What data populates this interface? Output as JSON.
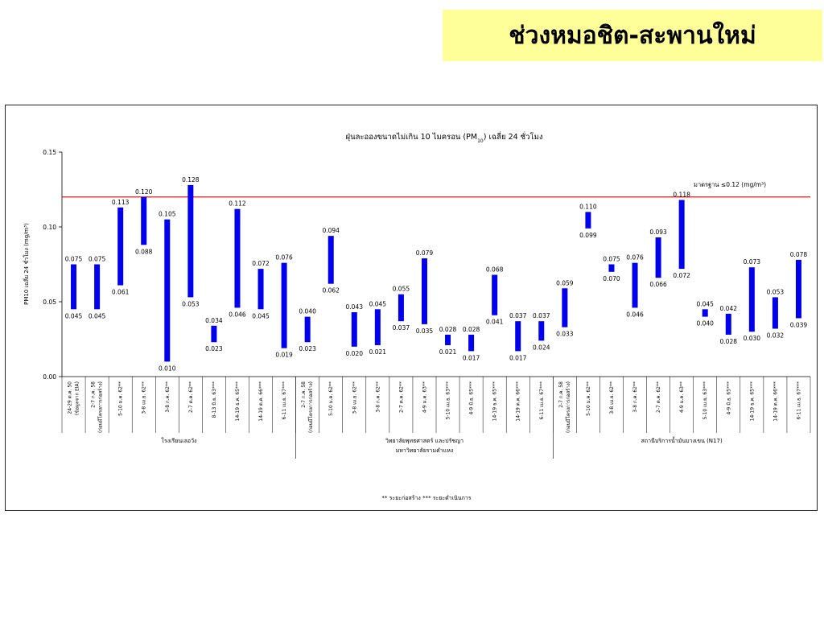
{
  "slide": {
    "title": "ช่วงหมอชิต-สะพานใหม่"
  },
  "chart_data": {
    "type": "bar",
    "subtype": "floating-range",
    "title": "ฝุ่นละอองขนาดไม่เกิน 10 ไมครอน (PM",
    "title_sub": "10",
    "title_tail": ") เฉลี่ย 24 ชั่วโมง",
    "ylabel": "PM10 เฉลี่ย 24 ชั่วโมง (mg/m³)",
    "ylim": [
      0,
      0.15
    ],
    "yticks": [
      "0.00",
      "0.05",
      "0.10",
      "0.15"
    ],
    "standard": {
      "value": 0.12,
      "label": "มาตรฐาน ≤0.12 (mg/m³)",
      "color": "#e00000"
    },
    "bar_color": "#0000ee",
    "categories": [
      "24-29 ต.ค. 50",
      "2-7 ก.ค. 58",
      "5-10 ม.ค. 62**",
      "3-8 เม.ย. 62**",
      "3-8 ก.ค. 62**",
      "2-7 ต.ค. 62**",
      "8-13 มิ.ย. 63***",
      "14-19 ธ.ค. 65***",
      "14-19 ต.ค. 66***",
      "6-11 เม.ย. 67***",
      "2-7 ก.ค. 58",
      "5-10 ม.ค. 62**",
      "3-8 เม.ย. 62**",
      "3-8 ก.ค. 62**",
      "2-7 ต.ค. 62**",
      "4-9 ม.ค. 63**",
      "5-10 เม.ย. 63***",
      "4-9 มิ.ย. 65***",
      "14-19 ธ.ค. 65***",
      "14-19 ต.ค. 66***",
      "6-11 เม.ย. 67***",
      "2-7 ก.ค. 58",
      "5-10 ม.ค. 62**",
      "3-8 เม.ย. 62**",
      "3-8 ก.ค. 62**",
      "2-7 ต.ค. 62**",
      "4-9 ม.ค. 63**",
      "5-10 เม.ย. 63***",
      "4-9 มิ.ย. 65***",
      "14-19 ธ.ค. 65***",
      "14-19 ต.ค. 66***",
      "6-11 เม.ย. 67***"
    ],
    "category_notes": {
      "0": "(ข้อมูลจาก EIA)",
      "1": "(ก่อนมีโครงการก่อสร้าง)",
      "10": "(ก่อนมีโครงการก่อสร้าง)",
      "21": "(ก่อนมีโครงการก่อสร้าง)"
    },
    "ranges": [
      [
        0.045,
        0.075
      ],
      [
        0.045,
        0.075
      ],
      [
        0.061,
        0.113
      ],
      [
        0.088,
        0.12
      ],
      [
        0.01,
        0.105
      ],
      [
        0.053,
        0.128
      ],
      [
        0.023,
        0.034
      ],
      [
        0.046,
        0.112
      ],
      [
        0.045,
        0.072
      ],
      [
        0.019,
        0.076
      ],
      [
        0.023,
        0.04
      ],
      [
        0.062,
        0.094
      ],
      [
        0.02,
        0.043
      ],
      [
        0.021,
        0.045
      ],
      [
        0.037,
        0.055
      ],
      [
        0.035,
        0.079
      ],
      [
        0.021,
        0.028
      ],
      [
        0.017,
        0.028
      ],
      [
        0.041,
        0.068
      ],
      [
        0.017,
        0.037
      ],
      [
        0.024,
        0.037
      ],
      [
        0.033,
        0.059
      ],
      [
        0.099,
        0.11
      ],
      [
        0.07,
        0.075
      ],
      [
        0.046,
        0.076
      ],
      [
        0.066,
        0.093
      ],
      [
        0.072,
        0.118
      ],
      [
        0.04,
        0.045
      ],
      [
        0.028,
        0.042
      ],
      [
        0.03,
        0.073
      ],
      [
        0.032,
        0.053
      ],
      [
        0.039,
        0.078
      ]
    ],
    "label_low": [
      "0.045",
      "0.045",
      "0.061",
      "0.088",
      "0.010",
      "0.053",
      "0.023",
      "0.046",
      "0.045",
      "0.019",
      "0.023",
      "0.062",
      "0.020",
      "0.021",
      "0.037",
      "0.035",
      "0.021",
      "0.017",
      "0.041",
      "0.017",
      "0.024",
      "0.033",
      "0.099",
      "0.070",
      "0.046",
      "0.066",
      "0.072",
      "0.040",
      "0.028",
      "0.030",
      "0.032",
      "0.039"
    ],
    "label_high": [
      "0.075",
      "0.075",
      "0.113",
      "0.120",
      "0.105",
      "0.128",
      "0.034",
      "0.112",
      "0.072",
      "0.076",
      "0.040",
      "0.094",
      "0.043",
      "0.045",
      "0.055",
      "0.079",
      "0.028",
      "0.028",
      "0.068",
      "0.037",
      "0.037",
      "0.059",
      "0.110",
      "0.075",
      "0.076",
      "0.093",
      "0.118",
      "0.045",
      "0.042",
      "0.073",
      "0.053",
      "0.078"
    ],
    "groups": [
      {
        "label": [
          "โรงเรียนเลอวัง"
        ],
        "start": 0,
        "end": 9
      },
      {
        "label": [
          "วิทยาลัยพุทธศาสตร์ และปรัชญา",
          "มหาวิทยาลัยรามคำแหง"
        ],
        "start": 10,
        "end": 20
      },
      {
        "label": [
          "สถานีบริการน้ำมันบางเขน (N17)"
        ],
        "start": 21,
        "end": 31
      }
    ],
    "footnote": "** ระยะก่อสร้าง    *** ระยะดำเนินการ"
  }
}
